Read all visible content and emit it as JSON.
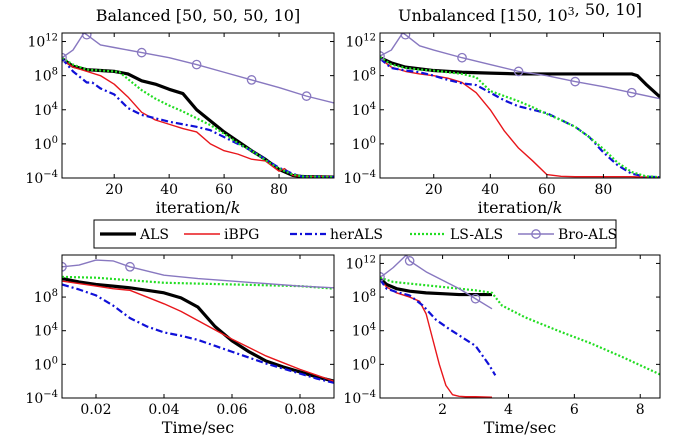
{
  "legend": {
    "placement": "center, between top and bottom rows",
    "entries": [
      {
        "label": "ALS",
        "color": "#000000",
        "style": "solid-thick"
      },
      {
        "label": "iBPG",
        "color": "#e8161b",
        "style": "solid"
      },
      {
        "label": "herALS",
        "color": "#1010d8",
        "style": "dash-dot"
      },
      {
        "label": "LS-ALS",
        "color": "#22dd22",
        "style": "dotted"
      },
      {
        "label": "Bro-ALS",
        "color": "#8878c0",
        "style": "solid-circle-markers"
      }
    ]
  },
  "chart_data": [
    {
      "type": "line",
      "title": "Balanced [50, 50, 50, 10]",
      "xlabel": "iteration/k",
      "ylabel": "",
      "xlim": [
        1,
        100
      ],
      "ylim_log10": [
        -4,
        13
      ],
      "yscale": "log",
      "xticks": [
        20,
        40,
        60,
        80
      ],
      "xtick_labels": [
        "20",
        "40",
        "60",
        "80"
      ],
      "ytick_exponents": [
        -4,
        0,
        4,
        8,
        12
      ],
      "ytick_labels": [
        "10^{-4}",
        "10^{0}",
        "10^{4}",
        "10^{8}",
        "10^{12}"
      ],
      "series": [
        {
          "name": "ALS",
          "x": [
            1,
            5,
            10,
            15,
            20,
            25,
            30,
            35,
            40,
            45,
            50,
            55,
            60,
            65,
            70,
            75,
            80,
            85,
            88,
            90,
            95,
            100
          ],
          "log10_y": [
            10,
            9.1,
            8.7,
            8.6,
            8.5,
            8.2,
            7.4,
            7.0,
            6.4,
            5.9,
            4.0,
            2.7,
            1.4,
            0.3,
            -0.8,
            -1.8,
            -3.0,
            -3.7,
            -3.8,
            -3.85,
            -3.85,
            -3.9
          ]
        },
        {
          "name": "iBPG",
          "x": [
            1,
            5,
            10,
            15,
            20,
            25,
            30,
            35,
            40,
            45,
            50,
            55,
            60,
            65,
            70,
            75,
            80,
            82,
            85,
            88,
            90,
            95,
            100
          ],
          "log10_y": [
            9.9,
            9.0,
            8.5,
            8.0,
            7.0,
            5.5,
            3.7,
            2.8,
            2.3,
            1.8,
            1.4,
            0.0,
            -0.8,
            -1.2,
            -1.8,
            -2.0,
            -3.2,
            -2.9,
            -3.7,
            -3.8,
            -3.85,
            -3.8,
            -3.85
          ]
        },
        {
          "name": "herALS",
          "x": [
            1,
            5,
            10,
            12,
            15,
            20,
            25,
            30,
            35,
            40,
            45,
            50,
            55,
            60,
            65,
            70,
            75,
            80,
            85,
            88,
            90,
            95,
            100
          ],
          "log10_y": [
            10,
            8.5,
            7.2,
            7.2,
            6.5,
            5.8,
            4.2,
            3.4,
            3.0,
            2.6,
            2.3,
            2.0,
            1.6,
            0.8,
            0.0,
            -0.8,
            -1.8,
            -2.8,
            -3.5,
            -3.8,
            -3.85,
            -3.85,
            -3.9
          ]
        },
        {
          "name": "LS-ALS",
          "x": [
            1,
            5,
            10,
            15,
            20,
            22,
            25,
            30,
            35,
            40,
            45,
            50,
            55,
            60,
            65,
            70,
            75,
            80,
            85,
            88,
            90,
            95,
            100
          ],
          "log10_y": [
            10.1,
            9.3,
            8.7,
            8.6,
            8.5,
            8.4,
            7.6,
            6.3,
            5.3,
            4.5,
            3.8,
            3.0,
            2.2,
            1.2,
            0.1,
            -0.8,
            -1.9,
            -2.9,
            -3.6,
            -3.8,
            -3.85,
            -3.85,
            -3.9
          ]
        },
        {
          "name": "Bro-ALS",
          "x": [
            1,
            5,
            9,
            10,
            15,
            20,
            30,
            40,
            50,
            60,
            70,
            80,
            90,
            100
          ],
          "log10_y": [
            10.1,
            11.0,
            13.0,
            12.8,
            11.6,
            11.3,
            10.7,
            10.1,
            9.3,
            8.4,
            7.5,
            6.6,
            5.6,
            4.8
          ],
          "markers_x": [
            1,
            10,
            30,
            50,
            70,
            90
          ]
        }
      ]
    },
    {
      "type": "line",
      "title": "Unbalanced [150, 10^3, 50, 10]",
      "xlabel": "iteration/k",
      "ylabel": "",
      "xlim": [
        1,
        100
      ],
      "ylim_log10": [
        -4,
        13
      ],
      "yscale": "log",
      "xticks": [
        20,
        40,
        60,
        80
      ],
      "xtick_labels": [
        "20",
        "40",
        "60",
        "80"
      ],
      "ytick_exponents": [
        -4,
        0,
        4,
        8,
        12
      ],
      "ytick_labels": [
        "10^{-4}",
        "10^{0}",
        "10^{4}",
        "10^{8}",
        "10^{12}"
      ],
      "series": [
        {
          "name": "ALS",
          "x": [
            1,
            5,
            10,
            20,
            30,
            40,
            50,
            60,
            70,
            80,
            90,
            92,
            95,
            100
          ],
          "log10_y": [
            10.1,
            9.5,
            9.0,
            8.6,
            8.4,
            8.3,
            8.2,
            8.2,
            8.2,
            8.2,
            8.2,
            8.0,
            7.0,
            5.5
          ]
        },
        {
          "name": "iBPG",
          "x": [
            1,
            5,
            10,
            15,
            20,
            25,
            30,
            35,
            40,
            45,
            50,
            55,
            60,
            65,
            70,
            80,
            90,
            100
          ],
          "log10_y": [
            10,
            9.0,
            8.5,
            8.2,
            8.0,
            7.7,
            7.2,
            6.0,
            4.0,
            1.5,
            -0.5,
            -2.0,
            -3.6,
            -3.8,
            -3.85,
            -3.85,
            -3.85,
            -3.9
          ]
        },
        {
          "name": "herALS",
          "x": [
            1,
            5,
            10,
            15,
            20,
            25,
            30,
            35,
            40,
            45,
            50,
            55,
            60,
            65,
            70,
            75,
            80,
            85,
            90,
            95,
            100
          ],
          "log10_y": [
            10,
            8.9,
            8.6,
            8.4,
            8.0,
            7.5,
            7.1,
            6.9,
            6.0,
            5.1,
            4.4,
            4.0,
            3.6,
            2.8,
            2.0,
            0.8,
            -1.0,
            -2.5,
            -3.5,
            -3.85,
            -3.9
          ]
        },
        {
          "name": "LS-ALS",
          "x": [
            1,
            5,
            10,
            15,
            20,
            25,
            30,
            35,
            40,
            45,
            50,
            55,
            60,
            65,
            70,
            75,
            80,
            85,
            90,
            95,
            100
          ],
          "log10_y": [
            10.2,
            9.3,
            8.9,
            8.7,
            8.6,
            8.4,
            8.2,
            7.8,
            6.2,
            5.6,
            5.0,
            4.3,
            3.5,
            2.8,
            2.0,
            0.8,
            -0.6,
            -2.2,
            -3.3,
            -3.8,
            -3.9
          ]
        },
        {
          "name": "Bro-ALS",
          "x": [
            1,
            5,
            9,
            10,
            15,
            20,
            30,
            40,
            50,
            60,
            70,
            80,
            90,
            100
          ],
          "log10_y": [
            10.3,
            11.0,
            13.0,
            12.8,
            11.5,
            11.0,
            10.1,
            9.3,
            8.5,
            8.0,
            7.3,
            6.7,
            6.0,
            5.3
          ],
          "markers_x": [
            1,
            10,
            30,
            50,
            70,
            90
          ]
        }
      ]
    },
    {
      "type": "line",
      "title": "",
      "xlabel": "Time/sec",
      "ylabel": "",
      "xlim": [
        0.01,
        0.09
      ],
      "ylim_log10": [
        -4,
        13
      ],
      "yscale": "log",
      "xticks": [
        0.02,
        0.04,
        0.06,
        0.08
      ],
      "xtick_labels": [
        "0.02",
        "0.04",
        "0.06",
        "0.08"
      ],
      "ytick_exponents": [
        -4,
        0,
        4,
        8
      ],
      "ytick_labels": [
        "10^{-4}",
        "10^{0}",
        "10^{4}",
        "10^{8}"
      ],
      "series": [
        {
          "name": "ALS",
          "x": [
            0.01,
            0.015,
            0.02,
            0.025,
            0.03,
            0.035,
            0.04,
            0.045,
            0.05,
            0.055,
            0.06,
            0.065,
            0.07,
            0.075,
            0.08,
            0.085,
            0.09
          ],
          "log10_y": [
            10.2,
            9.8,
            9.5,
            9.3,
            9.1,
            8.8,
            8.5,
            7.9,
            6.8,
            4.5,
            2.8,
            1.5,
            0.4,
            -0.3,
            -0.9,
            -1.5,
            -2.0
          ]
        },
        {
          "name": "iBPG",
          "x": [
            0.01,
            0.015,
            0.02,
            0.025,
            0.03,
            0.035,
            0.04,
            0.045,
            0.05,
            0.055,
            0.06,
            0.065,
            0.07,
            0.075,
            0.08,
            0.085,
            0.09
          ],
          "log10_y": [
            9.9,
            9.6,
            9.3,
            9.0,
            8.8,
            8.0,
            7.2,
            6.3,
            5.2,
            4.1,
            3.0,
            2.0,
            1.0,
            0.2,
            -0.6,
            -1.3,
            -2.0
          ]
        },
        {
          "name": "herALS",
          "x": [
            0.01,
            0.015,
            0.02,
            0.025,
            0.03,
            0.035,
            0.04,
            0.045,
            0.05,
            0.055,
            0.06,
            0.065,
            0.07,
            0.075,
            0.08,
            0.085,
            0.09
          ],
          "log10_y": [
            9.5,
            8.9,
            8.2,
            7.0,
            5.5,
            4.5,
            3.8,
            3.4,
            2.9,
            2.2,
            1.5,
            0.8,
            0.1,
            -0.5,
            -1.1,
            -1.7,
            -2.2
          ]
        },
        {
          "name": "LS-ALS",
          "x": [
            0.01,
            0.02,
            0.03,
            0.04,
            0.05,
            0.06,
            0.07,
            0.08,
            0.09
          ],
          "log10_y": [
            10.4,
            10.3,
            10.0,
            9.7,
            9.6,
            9.5,
            9.4,
            9.3,
            9.0
          ]
        },
        {
          "name": "Bro-ALS",
          "x": [
            0.01,
            0.015,
            0.02,
            0.025,
            0.03,
            0.04,
            0.05,
            0.06,
            0.07,
            0.08,
            0.09
          ],
          "log10_y": [
            11.6,
            11.8,
            12.4,
            12.3,
            11.6,
            10.6,
            10.2,
            9.9,
            9.6,
            9.3,
            9.1
          ],
          "markers_x": [
            0.01,
            0.03
          ]
        }
      ]
    },
    {
      "type": "line",
      "title": "",
      "xlabel": "Time/sec",
      "ylabel": "",
      "xlim": [
        0.1,
        8.6
      ],
      "ylim_log10": [
        -4,
        13
      ],
      "yscale": "log",
      "xticks": [
        2,
        4,
        6,
        8
      ],
      "xtick_labels": [
        "2",
        "4",
        "6",
        "8"
      ],
      "ytick_exponents": [
        -4,
        0,
        4,
        8,
        12
      ],
      "ytick_labels": [
        "10^{-4}",
        "10^{0}",
        "10^{4}",
        "10^{8}",
        "10^{12}"
      ],
      "series": [
        {
          "name": "ALS",
          "x": [
            0.1,
            0.3,
            0.6,
            1.0,
            1.5,
            2.0,
            2.5,
            3.0,
            3.5
          ],
          "log10_y": [
            10.2,
            9.5,
            9.0,
            8.7,
            8.5,
            8.4,
            8.3,
            8.3,
            8.3
          ]
        },
        {
          "name": "iBPG",
          "x": [
            0.1,
            0.3,
            0.6,
            1.0,
            1.3,
            1.5,
            1.7,
            1.9,
            2.1,
            2.3,
            2.5,
            2.7,
            3.0,
            3.5
          ],
          "log10_y": [
            10.1,
            9.2,
            8.5,
            8.0,
            7.5,
            6.0,
            3.0,
            0.0,
            -2.5,
            -3.6,
            -3.8,
            -3.85,
            -3.85,
            -3.9
          ]
        },
        {
          "name": "herALS",
          "x": [
            0.1,
            0.3,
            0.6,
            1.0,
            1.4,
            1.8,
            2.2,
            2.6,
            3.0,
            3.4,
            3.6
          ],
          "log10_y": [
            10.1,
            9.0,
            8.6,
            8.2,
            7.0,
            5.3,
            4.2,
            3.2,
            2.2,
            0.0,
            -1.3
          ]
        },
        {
          "name": "LS-ALS",
          "x": [
            0.1,
            0.5,
            1.0,
            1.5,
            2.0,
            2.5,
            3.0,
            3.5,
            3.8,
            4.5,
            5.5,
            6.5,
            7.5,
            8.6
          ],
          "log10_y": [
            10.3,
            9.8,
            9.6,
            9.4,
            9.2,
            9.0,
            8.8,
            8.5,
            7.0,
            5.6,
            4.0,
            2.5,
            0.8,
            -1.2
          ]
        },
        {
          "name": "Bro-ALS",
          "x": [
            0.1,
            0.2,
            0.5,
            0.9,
            1.0,
            1.5,
            2.0,
            2.5,
            3.0,
            3.5
          ],
          "log10_y": [
            10.4,
            10.6,
            11.5,
            13.0,
            12.3,
            11.0,
            10.0,
            9.0,
            7.8,
            6.6
          ],
          "markers_x": [
            0.1,
            1.0,
            3.0
          ]
        }
      ]
    }
  ]
}
